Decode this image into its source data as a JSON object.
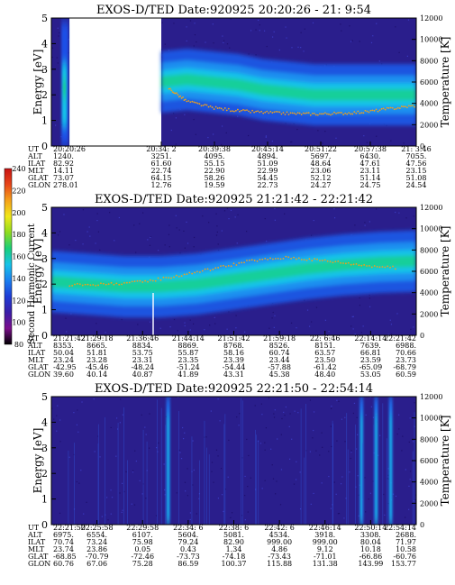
{
  "chart_data": {
    "type": "heatmap",
    "colorbar": {
      "label": "Second Harmonic Current",
      "ticks": [
        "80",
        "100",
        "120",
        "140",
        "160",
        "180",
        "200",
        "220",
        "240"
      ],
      "colors": [
        "#000000",
        "#7b0e8c",
        "#3a1ea8",
        "#1e3cd6",
        "#1a7ff0",
        "#17c3e8",
        "#19cf7a",
        "#8fdc1e",
        "#f0e81a",
        "#f5a21a",
        "#e8461a",
        "#c81414"
      ]
    },
    "panels": [
      {
        "title": "EXOS-D/TED   Date:920925  20:20:26 - 21: 9:54",
        "ylabel": "Energy [eV]",
        "y2label": "Temperature [K]",
        "ylim": [
          0,
          5
        ],
        "y2lim": [
          0,
          12000
        ],
        "yticks": [
          "0",
          "1",
          "2",
          "3",
          "4",
          "5"
        ],
        "y2ticks": [
          "0",
          "2000",
          "4000",
          "6000",
          "8000",
          "10000",
          "12000"
        ],
        "ephemeris_labels": [
          "UT",
          "ALT",
          "ILAT",
          "MLT",
          "GLAT",
          "GLON"
        ],
        "ephemeris": [
          [
            "20:20:26",
            "1240.",
            "82.92",
            "14.11",
            "73.07",
            "278.01"
          ],
          [
            "20:34: 2",
            "3251.",
            "61.60",
            "22.74",
            "64.15",
            "12.76"
          ],
          [
            "20:39:38",
            "4095.",
            "55.15",
            "22.90",
            "58.26",
            "19.59"
          ],
          [
            "20:45:14",
            "4894.",
            "51.09",
            "22.99",
            "54.45",
            "22.73"
          ],
          [
            "20:51:22",
            "5697.",
            "48.64",
            "23.06",
            "52.12",
            "24.27"
          ],
          [
            "20:57:38",
            "6430.",
            "47.61",
            "23.11",
            "51.14",
            "24.75"
          ],
          [
            "21: 3:46",
            "7055.",
            "47.56",
            "23.15",
            "51.08",
            "24.54"
          ],
          [
            "21: 9:54",
            "7588.",
            "48.11",
            "23.19",
            "51.59",
            "23.84"
          ]
        ],
        "data_gap_ut": [
          "20:20:26",
          "20:34: 2"
        ],
        "band": [
          [
            0,
            2.5
          ],
          [
            0.1,
            2.6
          ],
          [
            0.2,
            2.5
          ],
          [
            0.3,
            2.4
          ],
          [
            0.4,
            2.2
          ],
          [
            0.5,
            2.1
          ],
          [
            0.6,
            2.0
          ],
          [
            0.7,
            2.0
          ],
          [
            0.8,
            2.0
          ],
          [
            0.9,
            2.0
          ],
          [
            1.0,
            2.0
          ]
        ],
        "temperature": [
          [
            0.03,
            5400
          ],
          [
            0.1,
            4200
          ],
          [
            0.2,
            3600
          ],
          [
            0.3,
            3300
          ],
          [
            0.4,
            3150
          ],
          [
            0.5,
            3050
          ],
          [
            0.6,
            3000
          ],
          [
            0.7,
            3050
          ],
          [
            0.8,
            3200
          ],
          [
            0.9,
            3500
          ],
          [
            1.0,
            3800
          ]
        ]
      },
      {
        "title": "EXOS-D/TED   Date:920925  21:21:42 - 22:21:42",
        "ylabel": "Energy [eV]",
        "y2label": "Temperature [K]",
        "ylim": [
          0,
          5
        ],
        "y2lim": [
          0,
          12000
        ],
        "yticks": [
          "0",
          "1",
          "2",
          "3",
          "4",
          "5"
        ],
        "y2ticks": [
          "0",
          "2000",
          "4000",
          "6000",
          "8000",
          "10000",
          "12000"
        ],
        "ephemeris_labels": [
          "UT",
          "ALT",
          "ILAT",
          "MLT",
          "GLAT",
          "GLON"
        ],
        "ephemeris": [
          [
            "21:21:42",
            "8353.",
            "50.04",
            "23.24",
            "-42.95",
            "39.60"
          ],
          [
            "21:29:18",
            "8665.",
            "51.81",
            "23.28",
            "-45.46",
            "40.14"
          ],
          [
            "21:36:46",
            "8834.",
            "53.75",
            "23.31",
            "-48.24",
            "40.87"
          ],
          [
            "21:44:14",
            "8869.",
            "55.87",
            "23.35",
            "-51.24",
            "41.89"
          ],
          [
            "21:51:42",
            "8768.",
            "58.16",
            "23.39",
            "-54.44",
            "43.31"
          ],
          [
            "21:59:18",
            "8526.",
            "60.74",
            "23.44",
            "-57.88",
            "45.38"
          ],
          [
            "22: 6:46",
            "8151.",
            "63.57",
            "23.50",
            "-61.42",
            "48.40"
          ],
          [
            "22:14:14",
            "7639.",
            "66.81",
            "23.59",
            "-65.09",
            "53.05"
          ],
          [
            "22:21:42",
            "6988.",
            "70.66",
            "23.73",
            "-68.79",
            "60.59"
          ]
        ],
        "band": [
          [
            0,
            2.1
          ],
          [
            0.1,
            2.0
          ],
          [
            0.2,
            1.9
          ],
          [
            0.3,
            1.9
          ],
          [
            0.4,
            2.0
          ],
          [
            0.5,
            2.2
          ],
          [
            0.6,
            2.4
          ],
          [
            0.7,
            2.6
          ],
          [
            0.8,
            2.75
          ],
          [
            0.9,
            2.85
          ],
          [
            1.0,
            2.9
          ]
        ],
        "temperature": [
          [
            0.05,
            4700
          ],
          [
            0.15,
            4800
          ],
          [
            0.25,
            5000
          ],
          [
            0.35,
            5600
          ],
          [
            0.45,
            6300
          ],
          [
            0.55,
            7000
          ],
          [
            0.65,
            7300
          ],
          [
            0.75,
            7000
          ],
          [
            0.85,
            6600
          ],
          [
            0.95,
            6300
          ]
        ]
      },
      {
        "title": "EXOS-D/TED   Date:920925  22:21:50 - 22:54:14",
        "ylabel": "Energy [eV]",
        "y2label": "Temperature [K]",
        "ylim": [
          0,
          5
        ],
        "y2lim": [
          0,
          12000
        ],
        "yticks": [
          "0",
          "1",
          "2",
          "3",
          "4",
          "5"
        ],
        "y2ticks": [
          "0",
          "2000",
          "4000",
          "6000",
          "8000",
          "10000",
          "12000"
        ],
        "ephemeris_labels": [
          "UT",
          "ALT",
          "ILAT",
          "MLT",
          "GLAT",
          "GLON"
        ],
        "ephemeris": [
          [
            "22:21:50",
            "6975.",
            "70.74",
            "23.74",
            "-68.85",
            "60.76"
          ],
          [
            "22:25:58",
            "6554.",
            "73.24",
            "23.86",
            "-70.79",
            "67.06"
          ],
          [
            "22:29:58",
            "6107.",
            "75.98",
            "0.05",
            "-72.46",
            "75.28"
          ],
          [
            "22:34: 6",
            "5604.",
            "79.24",
            "0.43",
            "-73.73",
            "86.59"
          ],
          [
            "22:38: 6",
            "5081.",
            "82.90",
            "1.34",
            "-74.18",
            "100.37"
          ],
          [
            "22:42: 6",
            "4534.",
            "999.00",
            "4.86",
            "-73.43",
            "115.88"
          ],
          [
            "22:46:14",
            "3918.",
            "999.00",
            "9.12",
            "-71.01",
            "131.38"
          ],
          [
            "22:50:14",
            "3308.",
            "80.04",
            "10.18",
            "-66.86",
            "143.99"
          ],
          [
            "22:54:14",
            "2688.",
            "71.97",
            "10.58",
            "-60.76",
            "153.77"
          ]
        ],
        "vertical_bursts": [
          0.32,
          0.85,
          0.89,
          0.93
        ]
      }
    ]
  }
}
